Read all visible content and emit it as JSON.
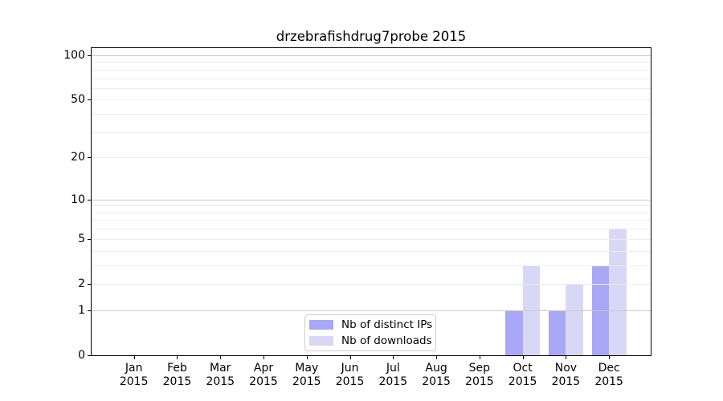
{
  "chart_data": {
    "type": "bar",
    "title": "drzebrafishdrug7probe 2015",
    "year": "2015",
    "months": [
      "Jan",
      "Feb",
      "Mar",
      "Apr",
      "May",
      "Jun",
      "Jul",
      "Aug",
      "Sep",
      "Oct",
      "Nov",
      "Dec"
    ],
    "series": [
      {
        "name": "Nb of distinct IPs",
        "color": "#a8a8f6",
        "values": [
          0,
          0,
          0,
          0,
          0,
          0,
          0,
          0,
          0,
          1,
          1,
          3
        ]
      },
      {
        "name": "Nb of downloads",
        "color": "#d8d8f6",
        "values": [
          0,
          0,
          0,
          0,
          0,
          0,
          0,
          0,
          0,
          3,
          2,
          6
        ]
      }
    ],
    "xlabel": "",
    "ylabel": "",
    "y_scale": "log1p",
    "ylim": [
      0,
      100
    ],
    "y_ticks": [
      0,
      1,
      2,
      5,
      10,
      20,
      50,
      100
    ],
    "grid_major": [
      1,
      10,
      100
    ],
    "grid_minor": [
      2,
      3,
      4,
      5,
      6,
      7,
      8,
      9,
      20,
      30,
      40,
      50,
      60,
      70,
      80,
      90
    ],
    "grid": "horizontal, drawn above bars",
    "legend_position": "lower center"
  },
  "colors": {
    "background": "#ffffff",
    "axis": "#000000",
    "grid_major": "#c9c9c9",
    "grid_minor": "#ececec",
    "legend_border": "#cccccc",
    "bar_distinct_ips": "#a8a8f6",
    "bar_downloads": "#d8d8f6"
  }
}
